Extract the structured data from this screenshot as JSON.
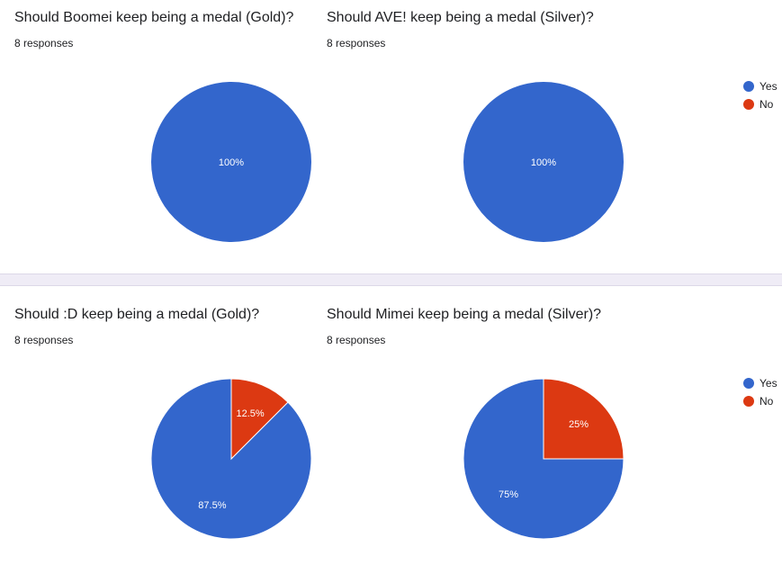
{
  "colors": {
    "yes": "#3366cc",
    "no": "#dc3912"
  },
  "sections": [
    {
      "legend": [
        "Yes",
        "No"
      ],
      "questions": [
        {
          "title": "Should Boomei keep being a medal (Gold)?",
          "responses": "8 responses",
          "chart_data": {
            "type": "pie",
            "categories": [
              "Yes",
              "No"
            ],
            "values": [
              100,
              0
            ],
            "labels": [
              "100%",
              ""
            ]
          }
        },
        {
          "title": "Should AVE! keep being a medal (Silver)?",
          "responses": "8 responses",
          "chart_data": {
            "type": "pie",
            "categories": [
              "Yes",
              "No"
            ],
            "values": [
              100,
              0
            ],
            "labels": [
              "100%",
              ""
            ]
          }
        }
      ]
    },
    {
      "legend": [
        "Yes",
        "No"
      ],
      "questions": [
        {
          "title": "Should :D keep being a medal (Gold)?",
          "responses": "8 responses",
          "chart_data": {
            "type": "pie",
            "categories": [
              "Yes",
              "No"
            ],
            "values": [
              87.5,
              12.5
            ],
            "labels": [
              "87.5%",
              "12.5%"
            ]
          }
        },
        {
          "title": "Should Mimei keep being a medal (Silver)?",
          "responses": "8 responses",
          "chart_data": {
            "type": "pie",
            "categories": [
              "Yes",
              "No"
            ],
            "values": [
              75,
              25
            ],
            "labels": [
              "75%",
              "25%"
            ]
          }
        }
      ]
    }
  ]
}
